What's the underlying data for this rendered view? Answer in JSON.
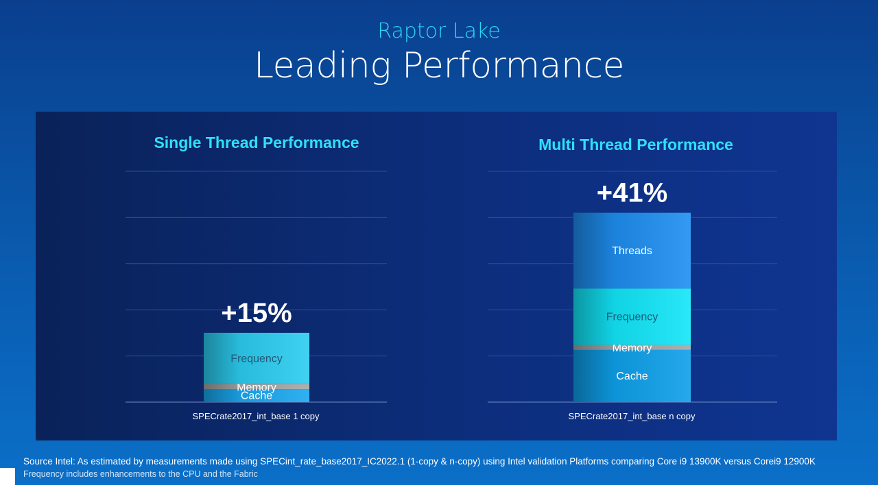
{
  "slide": {
    "subtitle": "Raptor Lake",
    "title": "Leading Performance"
  },
  "chart_data": [
    {
      "type": "bar",
      "stacked": true,
      "title": "Single Thread Performance",
      "categories": [
        "SPECrate2017_int_base 1 copy"
      ],
      "xlabel": "SPECrate2017_int_base 1 copy",
      "total_label": "+15%",
      "total_value": 15,
      "ylim": [
        0,
        50
      ],
      "grid": true,
      "series": [
        {
          "name": "Cache",
          "values": [
            2.8
          ],
          "color": "#1aa8f0"
        },
        {
          "name": "Memory",
          "values": [
            1.1
          ],
          "color": "#a6a6a6"
        },
        {
          "name": "Frequency",
          "values": [
            11.1
          ],
          "color": "#2ccdf0"
        }
      ]
    },
    {
      "type": "bar",
      "stacked": true,
      "title": "Multi Thread Performance",
      "categories": [
        "SPECrate2017_int_base n copy"
      ],
      "xlabel": "SPECrate2017_int_base n copy",
      "total_label": "+41%",
      "total_value": 41,
      "ylim": [
        0,
        50
      ],
      "grid": true,
      "series": [
        {
          "name": "Cache",
          "values": [
            11.3
          ],
          "color": "#0ea0ea"
        },
        {
          "name": "Memory",
          "values": [
            1.1
          ],
          "color": "#a6a6a6"
        },
        {
          "name": "Frequency",
          "values": [
            12.2
          ],
          "color": "#12e6f8"
        },
        {
          "name": "Threads",
          "values": [
            16.4
          ],
          "color": "#1e8ef0"
        }
      ]
    }
  ],
  "footer": {
    "source": "Source Intel: As estimated by measurements made using  SPECint_rate_base2017_IC2022.1 (1-copy & n-copy) using Intel validation Platforms comparing Core i9 13900K versus Corei9 12900K",
    "note": "Frequency includes enhancements to the CPU and the Fabric"
  }
}
